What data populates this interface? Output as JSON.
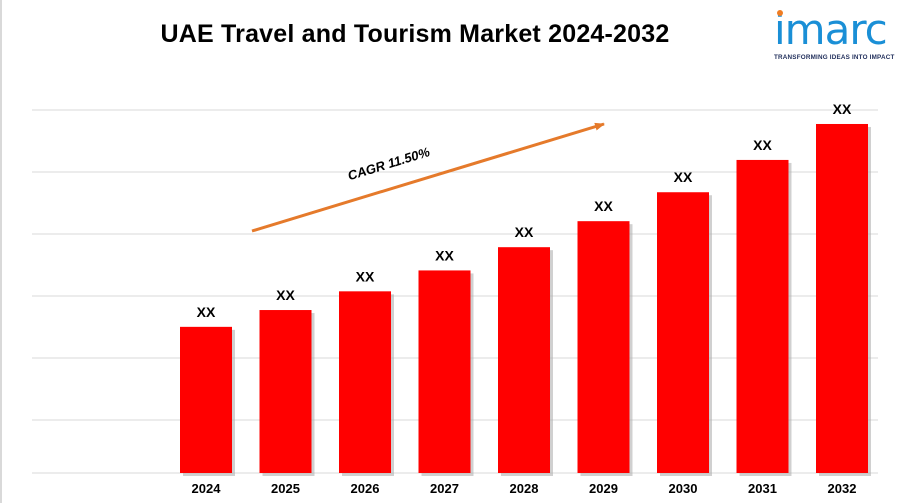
{
  "title": "UAE Travel and Tourism Market 2024-2032",
  "logo": {
    "name": "imarc",
    "tagline": "TRANSFORMING IDEAS INTO IMPACT"
  },
  "colors": {
    "bar": "#ff0000",
    "arrow": "#e57a2b",
    "grid": "#d9d9d9",
    "logo": "#1a8fd6"
  },
  "chart_data": {
    "type": "bar",
    "title": "UAE Travel and Tourism Market 2024-2032",
    "categories": [
      "2024",
      "2025",
      "2026",
      "2027",
      "2028",
      "2029",
      "2030",
      "2031",
      "2032"
    ],
    "values": [
      1.0,
      1.115,
      1.243,
      1.386,
      1.545,
      1.723,
      1.921,
      2.142,
      2.388
    ],
    "data_labels": [
      "XX",
      "XX",
      "XX",
      "XX",
      "XX",
      "XX",
      "XX",
      "XX",
      "XX"
    ],
    "xlabel": "",
    "ylabel": "",
    "ylim": [
      0,
      2.6
    ],
    "grid": true,
    "legend": "none",
    "annotation": {
      "text": "CAGR 11.50%",
      "rate_percent": 11.5
    }
  }
}
